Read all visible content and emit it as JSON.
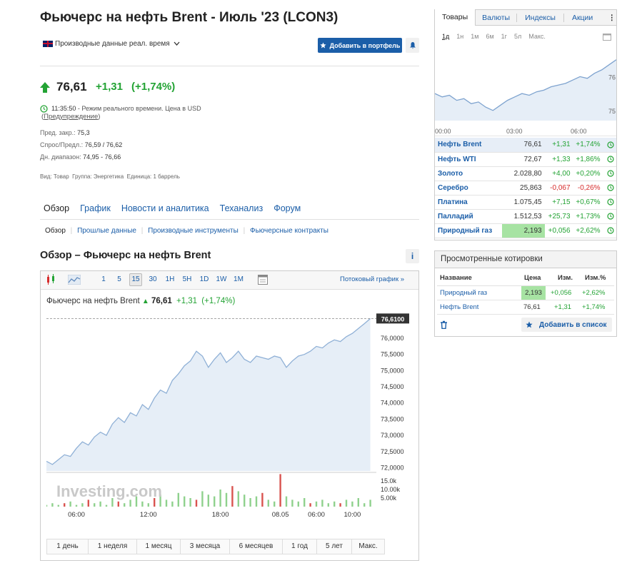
{
  "title": "Фьючерс на нефть Brent - Июль '23 (LCON3)",
  "data_type": "Производные данные реал. время",
  "add_portfolio": "Добавить в портфель",
  "price": {
    "last": "76,61",
    "change": "+1,31",
    "change_pct": "(+1,74%)"
  },
  "status": {
    "time": "11:35:50",
    "text": "- Режим реального времени.  Цена в USD",
    "warning_open": "(",
    "warning": "Предупреждение",
    "warning_close": ")"
  },
  "stats": [
    {
      "label": "Пред. закр.:",
      "value": "75,3"
    },
    {
      "label": "Спрос/Предл.:",
      "value": "76,59 / 76,62"
    },
    {
      "label": "Дн. диапазон:",
      "value": "74,95 - 76,66"
    }
  ],
  "meta": "Вид: Товар  Группа: Энергетика  Единица: 1 баррель",
  "tabs": [
    "Обзор",
    "График",
    "Новости и аналитика",
    "Теханализ",
    "Форум"
  ],
  "subtabs": [
    "Обзор",
    "Прошлые данные",
    "Производные инструменты",
    "Фьючерсные контракты"
  ],
  "section_title": "Обзор – Фьючерс на нефть Brent",
  "chart_toolbar": {
    "intervals": [
      "1",
      "5",
      "15",
      "30",
      "1H",
      "5H",
      "1D",
      "1W",
      "1M"
    ],
    "stream": "Потоковый график"
  },
  "chart_header": {
    "name": "Фьючерс на нефть Brent",
    "last": "76,61",
    "change": "+1,31",
    "pct": "(+1,74%)"
  },
  "chart_ranges": [
    "1 день",
    "1 неделя",
    "1 месяц",
    "3 месяца",
    "6 месяцев",
    "1 год",
    "5 лет",
    "Макс."
  ],
  "watermark": "Investing.com",
  "chart_data": {
    "type": "area",
    "price_label": "76,6100",
    "y_ticks": [
      "76,0000",
      "75,5000",
      "75,0000",
      "74,5000",
      "74,0000",
      "73,5000",
      "73,0000",
      "72,5000",
      "72,0000"
    ],
    "y_tick_values": [
      76.0,
      75.5,
      75.0,
      74.5,
      74.0,
      73.5,
      73.0,
      72.5,
      72.0
    ],
    "ylim": [
      71.9,
      76.75
    ],
    "x_ticks": [
      "06:00",
      "12:00",
      "18:00",
      "08.05",
      "06:00",
      "10:00"
    ],
    "x_tick_positions": [
      6,
      18,
      30,
      40,
      46,
      52
    ],
    "xlim": [
      1,
      56
    ],
    "values": [
      72.2,
      72.1,
      72.25,
      72.4,
      72.35,
      72.6,
      72.8,
      72.7,
      72.95,
      73.1,
      73.0,
      73.35,
      73.55,
      73.4,
      73.7,
      73.6,
      73.95,
      73.8,
      74.15,
      74.4,
      74.3,
      74.7,
      74.9,
      75.15,
      75.3,
      75.6,
      75.45,
      75.1,
      75.35,
      75.55,
      75.25,
      75.4,
      75.6,
      75.35,
      75.25,
      75.45,
      75.4,
      75.35,
      75.45,
      75.4,
      75.1,
      75.3,
      75.45,
      75.5,
      75.6,
      75.75,
      75.7,
      75.85,
      75.95,
      75.9,
      76.05,
      76.15,
      76.3,
      76.45,
      76.61
    ],
    "volume_ticks": [
      "15.0k",
      "10.00k",
      "5.00k"
    ],
    "volume_values": [
      1,
      2,
      1,
      2,
      3,
      1,
      2,
      4,
      2,
      3,
      1,
      5,
      3,
      2,
      4,
      6,
      3,
      2,
      5,
      7,
      4,
      3,
      8,
      6,
      5,
      4,
      9,
      7,
      6,
      10,
      8,
      12,
      9,
      7,
      5,
      6,
      8,
      4,
      3,
      19,
      6,
      4,
      3,
      5,
      2,
      3,
      4,
      2,
      3,
      2,
      4,
      3,
      5,
      2,
      4
    ],
    "volume_red": [
      3,
      7,
      12,
      18,
      25,
      31,
      36,
      39,
      44,
      49
    ],
    "current": "76,61"
  },
  "right_tabs": [
    "Товары",
    "Валюты",
    "Индексы",
    "Акции"
  ],
  "mini_ranges": [
    "1д",
    "1н",
    "1м",
    "6м",
    "1г",
    "5л",
    "Макс."
  ],
  "mini_chart": {
    "y_ticks": [
      "76",
      "75"
    ],
    "x_ticks": [
      "00:00",
      "03:00",
      "06:00"
    ],
    "values": [
      75.5,
      75.4,
      75.45,
      75.3,
      75.35,
      75.2,
      75.25,
      75.1,
      75.0,
      75.15,
      75.3,
      75.4,
      75.5,
      75.45,
      75.55,
      75.6,
      75.7,
      75.75,
      75.8,
      75.9,
      76.0,
      75.95,
      76.1,
      76.2,
      76.35,
      76.5
    ]
  },
  "commodities": [
    {
      "name": "Нефть Brent",
      "price": "76,61",
      "change": "+1,31",
      "pct": "+1,74%",
      "dir": "up"
    },
    {
      "name": "Нефть WTI",
      "price": "72,67",
      "change": "+1,33",
      "pct": "+1,86%",
      "dir": "up"
    },
    {
      "name": "Золото",
      "price": "2.028,80",
      "change": "+4,00",
      "pct": "+0,20%",
      "dir": "up"
    },
    {
      "name": "Серебро",
      "price": "25,863",
      "change": "-0,067",
      "pct": "-0,26%",
      "dir": "down"
    },
    {
      "name": "Платина",
      "price": "1.075,45",
      "change": "+7,15",
      "pct": "+0,67%",
      "dir": "up"
    },
    {
      "name": "Палладий",
      "price": "1.512,53",
      "change": "+25,73",
      "pct": "+1,73%",
      "dir": "up"
    },
    {
      "name": "Природный газ",
      "price": "2,193",
      "change": "+0,056",
      "pct": "+2,62%",
      "dir": "up"
    }
  ],
  "viewed": {
    "title": "Просмотренные котировки",
    "headers": [
      "Название",
      "Цена",
      "Изм.",
      "Изм.%"
    ],
    "rows": [
      {
        "name": "Природный газ",
        "price": "2,193",
        "change": "+0,056",
        "pct": "+2,62%"
      },
      {
        "name": "Нефть Brent",
        "price": "76,61",
        "change": "+1,31",
        "pct": "+1,74%"
      }
    ],
    "add_label": "Добавить в список"
  },
  "colors": {
    "accent": "#1b5ea8",
    "up": "#23a334",
    "down": "#d62b2b",
    "highlight": "#a7e3a3"
  }
}
